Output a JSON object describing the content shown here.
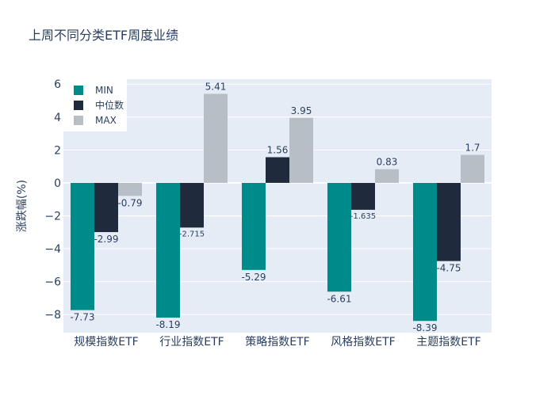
{
  "chart_data": {
    "type": "bar",
    "title": "上周不同分类ETF周度业绩",
    "xlabel": "",
    "ylabel": "涨跌幅(%)",
    "ylim": [
      -9.1,
      6.3
    ],
    "yticks": [
      -8,
      -6,
      -4,
      -2,
      0,
      2,
      4,
      6
    ],
    "ytick_labels": [
      "−8",
      "−6",
      "−4",
      "−2",
      "0",
      "2",
      "4",
      "6"
    ],
    "categories": [
      "规模指数ETF",
      "行业指数ETF",
      "策略指数ETF",
      "风格指数ETF",
      "主题指数ETF"
    ],
    "series": [
      {
        "name": "MIN",
        "color": "#008b8b",
        "values": [
          -7.73,
          -8.19,
          -5.29,
          -6.61,
          -8.39
        ],
        "labels": [
          "-7.73",
          "-8.19",
          "-5.29",
          "-6.61",
          "-8.39"
        ]
      },
      {
        "name": "中位数",
        "color": "#1f2a3c",
        "values": [
          -2.99,
          -2.715,
          1.56,
          -1.635,
          -4.75
        ],
        "labels": [
          "-2.99",
          "-2.715",
          "1.56",
          "-1.635",
          "-4.75"
        ]
      },
      {
        "name": "MAX",
        "color": "#b8bec6",
        "values": [
          -0.79,
          5.41,
          3.95,
          0.83,
          1.7
        ],
        "labels": [
          "-0.79",
          "5.41",
          "3.95",
          "0.83",
          "1.7"
        ]
      }
    ],
    "legend": "top-left",
    "grid": true
  }
}
